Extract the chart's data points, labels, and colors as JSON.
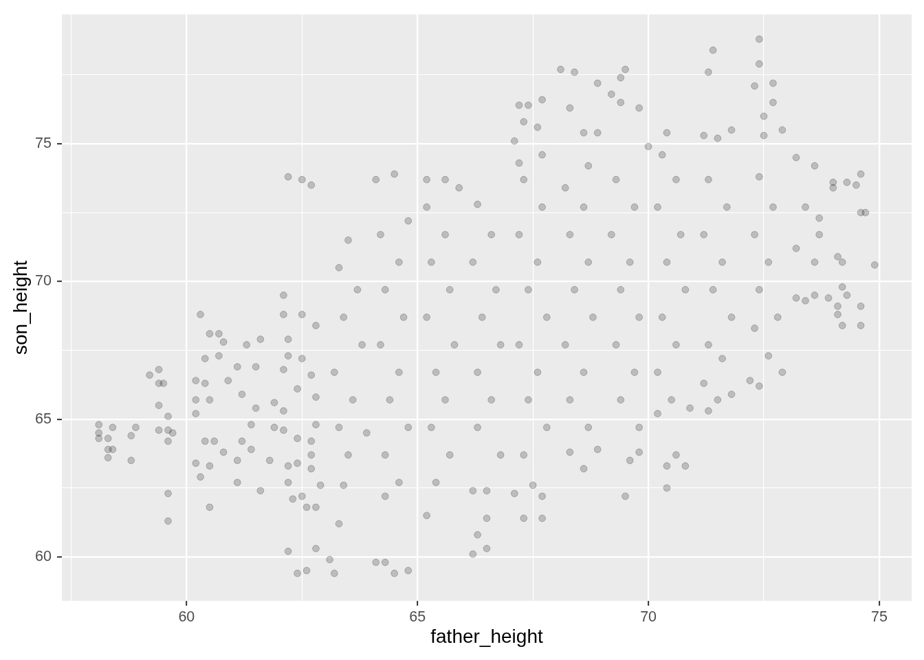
{
  "chart_data": {
    "type": "scatter",
    "xlabel": "father_height",
    "ylabel": "son_height",
    "xlim": [
      57.3,
      75.7
    ],
    "ylim": [
      58.4,
      79.7
    ],
    "xticks": [
      {
        "value": 57.5,
        "label": null
      },
      60,
      {
        "value": 62.5,
        "label": null
      },
      65,
      {
        "value": 67.5,
        "label": null
      },
      70,
      {
        "value": 72.5,
        "label": null
      },
      75
    ],
    "yticks": [
      60,
      {
        "value": 62.5,
        "label": null
      },
      65,
      {
        "value": 67.5,
        "label": null
      },
      70,
      {
        "value": 72.5,
        "label": null
      },
      75,
      {
        "value": 77.5,
        "label": null
      }
    ],
    "grid": true,
    "marker": "circle",
    "x": [
      58.1,
      58.1,
      58.1,
      58.3,
      58.3,
      58.3,
      58.4,
      58.4,
      58.8,
      58.8,
      58.9,
      59.2,
      59.4,
      59.4,
      59.4,
      59.5,
      59.6,
      59.6,
      59.6,
      59.6,
      59.6,
      59.4,
      59.7,
      60.3,
      60.5,
      60.7,
      60.8,
      60.4,
      60.7,
      61.3,
      61.6,
      61.1,
      61.5,
      60.2,
      60.4,
      60.9,
      61.2,
      60.2,
      60.5,
      60.2,
      61.5,
      61.9,
      61.4,
      61.9,
      60.4,
      60.6,
      61.2,
      60.8,
      61.4,
      60.2,
      60.5,
      61.1,
      61.8,
      60.3,
      61.1,
      61.6,
      60.5,
      62.1,
      62.1,
      62.2,
      62.2,
      62.1,
      62.1,
      62.1,
      62.2,
      62.2,
      62.3,
      62.4,
      62.4,
      62.4,
      62.5,
      62.5,
      62.5,
      62.8,
      62.7,
      62.8,
      62.8,
      62.7,
      62.7,
      62.7,
      62.9,
      62.6,
      62.8,
      62.2,
      62.5,
      62.7,
      62.2,
      62.8,
      62.4,
      62.6,
      63.1,
      63.2,
      63.3,
      63.7,
      63.4,
      63.8,
      63.2,
      63.6,
      63.3,
      63.9,
      63.5,
      63.4,
      63.3,
      63.5,
      64.2,
      64.6,
      64.3,
      64.7,
      64.2,
      64.6,
      64.4,
      64.8,
      64.3,
      64.6,
      64.3,
      64.1,
      64.5,
      64.8,
      64.1,
      64.3,
      64.5,
      64.8,
      65.2,
      65.6,
      65.3,
      65.7,
      65.2,
      65.8,
      65.4,
      65.6,
      65.3,
      65.7,
      65.4,
      65.2,
      65.2,
      65.6,
      65.9,
      66.3,
      66.6,
      66.2,
      66.7,
      66.4,
      66.8,
      66.3,
      66.6,
      66.3,
      66.8,
      66.2,
      66.5,
      66.5,
      66.3,
      66.5,
      66.2,
      67.3,
      67.7,
      67.2,
      67.6,
      67.4,
      67.8,
      67.2,
      67.6,
      67.4,
      67.8,
      67.3,
      67.5,
      67.1,
      67.7,
      67.7,
      67.3,
      68.2,
      68.6,
      68.3,
      68.7,
      68.4,
      68.8,
      68.2,
      68.6,
      68.3,
      68.7,
      68.3,
      68.6,
      68.9,
      69.3,
      69.7,
      69.2,
      69.6,
      69.4,
      69.8,
      69.3,
      69.7,
      69.4,
      69.8,
      69.6,
      69.8,
      69.5,
      70.3,
      70.6,
      70.2,
      70.7,
      70.4,
      70.8,
      70.3,
      70.6,
      70.2,
      70.5,
      70.2,
      70.4,
      70.6,
      70.8,
      70.4,
      70.9,
      71.3,
      71.7,
      71.2,
      71.6,
      71.4,
      71.8,
      71.3,
      71.6,
      71.2,
      71.5,
      71.3,
      71.8,
      72.4,
      72.7,
      72.3,
      72.6,
      72.4,
      72.8,
      72.3,
      72.6,
      72.2,
      72.4,
      72.9,
      72.4,
      71.4,
      72.4,
      71.3,
      68.1,
      68.4,
      69.5,
      69.4,
      68.9,
      72.3,
      72.7,
      67.2,
      67.4,
      67.7,
      68.3,
      69.2,
      69.4,
      69.8,
      72.7,
      72.5,
      72.5,
      72.9,
      71.2,
      71.8,
      71.5,
      70.4,
      73.2,
      73.6,
      67.1,
      67.3,
      67.6,
      68.6,
      68.9,
      68.7,
      67.2,
      67.7,
      70.0,
      74.0,
      74.0,
      74.3,
      74.5,
      74.6,
      73.4,
      73.7,
      74.6,
      74.7,
      73.2,
      73.6,
      73.7,
      74.9,
      74.1,
      74.2,
      74.1,
      74.6,
      74.3,
      74.2,
      74.1,
      74.2,
      74.6,
      73.2,
      73.6,
      73.4,
      73.9
    ],
    "series": [
      {
        "color": "#000000",
        "values": [
          64.8,
          64.5,
          64.3,
          64.3,
          63.9,
          63.6,
          63.9,
          64.7,
          63.5,
          64.4,
          64.7,
          66.6,
          66.3,
          66.8,
          65.5,
          66.3,
          65.1,
          64.6,
          64.2,
          62.3,
          61.3,
          64.6,
          64.5,
          68.8,
          68.1,
          68.1,
          67.8,
          67.2,
          67.3,
          67.7,
          67.9,
          66.9,
          66.9,
          66.4,
          66.3,
          66.4,
          65.9,
          65.7,
          65.7,
          65.2,
          65.4,
          65.6,
          64.8,
          64.7,
          64.2,
          64.2,
          64.2,
          63.8,
          63.9,
          63.4,
          63.3,
          63.5,
          63.5,
          62.9,
          62.7,
          62.4,
          61.8,
          69.5,
          68.8,
          67.9,
          67.3,
          66.8,
          65.3,
          64.6,
          63.3,
          62.7,
          62.1,
          66.1,
          64.3,
          63.4,
          62.2,
          68.8,
          67.2,
          68.4,
          66.6,
          65.8,
          64.8,
          64.2,
          63.7,
          63.2,
          62.6,
          61.8,
          61.8,
          73.8,
          73.7,
          73.5,
          60.2,
          60.3,
          59.4,
          59.5,
          59.9,
          59.4,
          70.5,
          69.7,
          68.7,
          67.7,
          66.7,
          65.7,
          64.7,
          64.5,
          63.7,
          62.6,
          61.2,
          71.5,
          71.7,
          70.7,
          69.7,
          68.7,
          67.7,
          66.7,
          65.7,
          64.7,
          63.7,
          62.7,
          62.2,
          73.7,
          73.9,
          72.2,
          59.8,
          59.8,
          59.4,
          59.5,
          72.7,
          71.7,
          70.7,
          69.7,
          68.7,
          67.7,
          66.7,
          65.7,
          64.7,
          63.7,
          62.7,
          61.5,
          73.7,
          73.7,
          73.4,
          72.8,
          71.7,
          70.7,
          69.7,
          68.7,
          67.7,
          66.7,
          65.7,
          64.7,
          63.7,
          62.4,
          62.4,
          61.4,
          60.8,
          60.3,
          60.1,
          73.7,
          72.7,
          71.7,
          70.7,
          69.7,
          68.7,
          67.7,
          66.7,
          65.7,
          64.7,
          63.7,
          62.6,
          62.3,
          62.2,
          61.4,
          61.4,
          73.4,
          72.7,
          71.7,
          70.7,
          69.7,
          68.7,
          67.7,
          66.7,
          65.7,
          64.7,
          63.8,
          63.2,
          63.9,
          73.7,
          72.7,
          71.7,
          70.7,
          69.7,
          68.7,
          67.7,
          66.7,
          65.7,
          64.7,
          63.5,
          63.8,
          62.2,
          74.6,
          73.7,
          72.7,
          71.7,
          70.7,
          69.7,
          68.7,
          67.7,
          66.7,
          65.7,
          65.2,
          63.3,
          63.7,
          63.3,
          62.5,
          65.4,
          73.7,
          72.7,
          71.7,
          70.7,
          69.7,
          68.7,
          67.7,
          67.2,
          66.3,
          65.7,
          65.3,
          65.9,
          73.8,
          72.7,
          71.7,
          70.7,
          69.7,
          68.7,
          68.3,
          67.3,
          66.4,
          66.2,
          66.7,
          78.8,
          78.4,
          77.9,
          77.6,
          77.7,
          77.6,
          77.7,
          77.4,
          77.2,
          77.1,
          77.2,
          76.4,
          76.4,
          76.6,
          76.3,
          76.8,
          76.5,
          76.3,
          76.5,
          76.0,
          75.3,
          75.5,
          75.3,
          75.5,
          75.2,
          75.4,
          74.5,
          74.2,
          75.1,
          75.8,
          75.6,
          75.4,
          75.4,
          74.2,
          74.3,
          74.6,
          74.9,
          73.6,
          73.4,
          73.6,
          73.5,
          73.9,
          72.7,
          72.3,
          72.5,
          72.5,
          71.2,
          70.7,
          71.7,
          70.6,
          70.9,
          70.7,
          69.1,
          69.1,
          69.5,
          69.8,
          68.8,
          68.4,
          68.4,
          69.4,
          69.5,
          69.3,
          69.4
        ]
      }
    ]
  }
}
